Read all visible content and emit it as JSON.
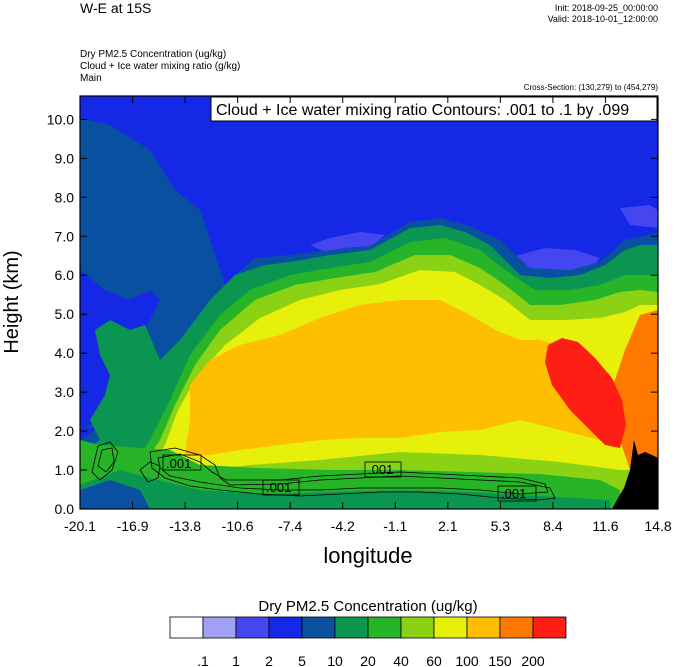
{
  "header": {
    "title": "W-E at 15S",
    "init": "Init: 2018-09-25_00:00:00",
    "valid": "Valid: 2018-10-01_12:00:00",
    "field1": "Dry PM2.5 Concentration   (ug/kg)",
    "field2": "Cloud + Ice water mixing ratio   (g/kg)",
    "field3": "Main",
    "cross_section": "Cross-Section: (130,279) to (454,279)"
  },
  "chart_data": {
    "type": "heatmap",
    "title": "Cloud + Ice water mixing ratio Contours: .001 to .1 by .099",
    "xlabel": "longitude",
    "ylabel": "Height (km)",
    "x_ticks": [
      "-20.1",
      "-16.9",
      "-13.8",
      "-10.6",
      "-7.4",
      "-4.2",
      "-1.1",
      "2.1",
      "5.3",
      "8.4",
      "11.6",
      "14.8"
    ],
    "y_ticks": [
      "0.0",
      "1.0",
      "2.0",
      "3.0",
      "4.0",
      "5.0",
      "6.0",
      "7.0",
      "8.0",
      "9.0",
      "10.0"
    ],
    "xlim": [
      -20.1,
      14.8
    ],
    "ylim": [
      0,
      10.6
    ],
    "contour_labels": [
      ".001",
      ".001",
      ".001",
      ".001"
    ],
    "colorbar": {
      "title": "Dry PM2.5 Concentration  (ug/kg)",
      "labels": [
        ".1",
        "1",
        "2",
        "5",
        "10",
        "20",
        "40",
        "60",
        "100",
        "150",
        "200"
      ],
      "colors": [
        "#ffffff",
        "#a0a0f5",
        "#4646f0",
        "#1428e6",
        "#0a50a0",
        "#0a9650",
        "#28b428",
        "#8cd214",
        "#e6f00a",
        "#ffbe00",
        "#ff7800",
        "#ff1e14"
      ]
    },
    "terrain_color": "#000000"
  }
}
